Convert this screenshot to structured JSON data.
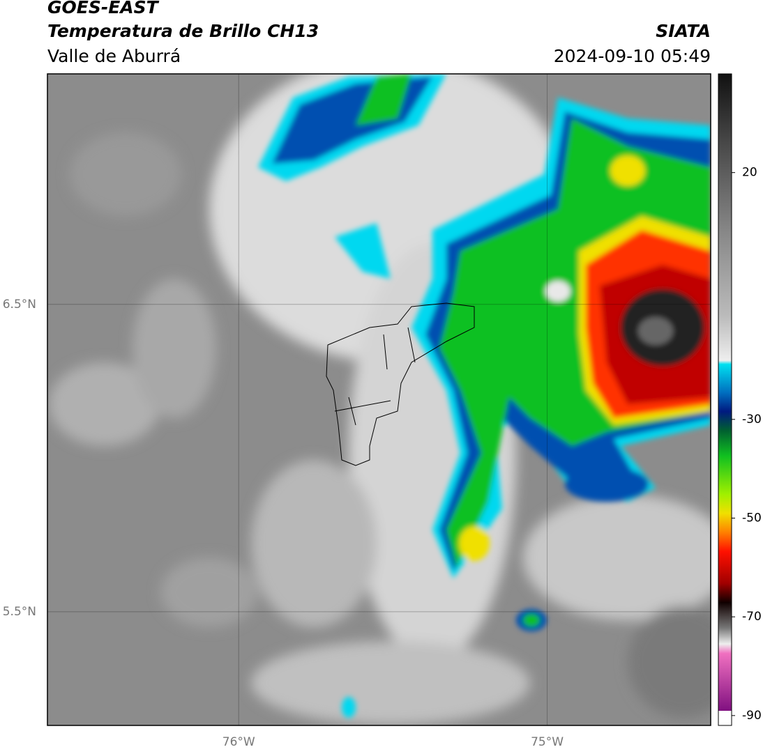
{
  "header": {
    "satellite": "GOES-EAST",
    "product": "Temperatura de Brillo CH13",
    "region": "Valle de Aburrá",
    "source": "SIATA",
    "datetime": "2024-09-10 05:49"
  },
  "map": {
    "xlim": [
      -76.62,
      -74.47
    ],
    "ylim": [
      5.13,
      7.25
    ],
    "xticks": [
      {
        "value": -76,
        "label": "76°W"
      },
      {
        "value": -75,
        "label": "75°W"
      }
    ],
    "yticks": [
      {
        "value": 6.5,
        "label": "6.5°N"
      },
      {
        "value": 5.5,
        "label": "5.5°N"
      }
    ]
  },
  "colorbar": {
    "lim": [
      -92,
      40
    ],
    "ticks": [
      20,
      -30,
      -50,
      -70,
      -90
    ]
  }
}
